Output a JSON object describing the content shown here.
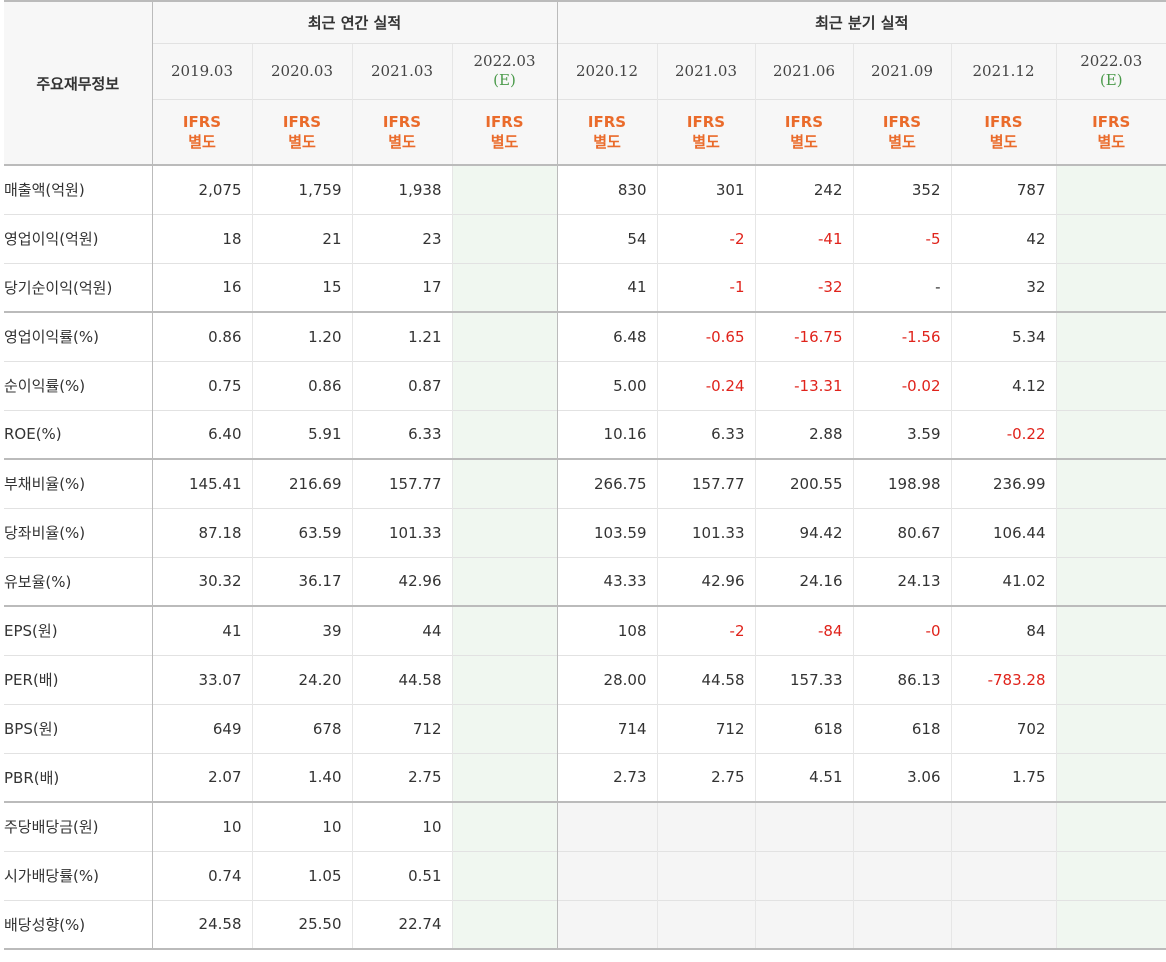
{
  "header": {
    "corner_label": "주요재무정보",
    "annual_group": "최근 연간 실적",
    "quarter_group": "최근 분기 실적",
    "annual_periods": [
      "2019.03",
      "2020.03",
      "2021.03",
      "2022.03"
    ],
    "annual_estimate_mark": "(E)",
    "quarter_periods": [
      "2020.12",
      "2021.03",
      "2021.06",
      "2021.09",
      "2021.12",
      "2022.03"
    ],
    "quarter_estimate_mark": "(E)",
    "ifrs_line1": "IFRS",
    "ifrs_line2": "별도"
  },
  "rows": [
    {
      "label": "매출액(억원)",
      "annual": [
        "2,075",
        "1,759",
        "1,938",
        ""
      ],
      "quarter": [
        "830",
        "301",
        "242",
        "352",
        "787",
        ""
      ]
    },
    {
      "label": "영업이익(억원)",
      "annual": [
        "18",
        "21",
        "23",
        ""
      ],
      "quarter": [
        "54",
        "-2",
        "-41",
        "-5",
        "42",
        ""
      ]
    },
    {
      "label": "당기순이익(억원)",
      "annual": [
        "16",
        "15",
        "17",
        ""
      ],
      "quarter": [
        "41",
        "-1",
        "-32",
        "-",
        "32",
        ""
      ]
    },
    {
      "label": "영업이익률(%)",
      "annual": [
        "0.86",
        "1.20",
        "1.21",
        ""
      ],
      "quarter": [
        "6.48",
        "-0.65",
        "-16.75",
        "-1.56",
        "5.34",
        ""
      ]
    },
    {
      "label": "순이익률(%)",
      "annual": [
        "0.75",
        "0.86",
        "0.87",
        ""
      ],
      "quarter": [
        "5.00",
        "-0.24",
        "-13.31",
        "-0.02",
        "4.12",
        ""
      ]
    },
    {
      "label": "ROE(%)",
      "annual": [
        "6.40",
        "5.91",
        "6.33",
        ""
      ],
      "quarter": [
        "10.16",
        "6.33",
        "2.88",
        "3.59",
        "-0.22",
        ""
      ]
    },
    {
      "label": "부채비율(%)",
      "annual": [
        "145.41",
        "216.69",
        "157.77",
        ""
      ],
      "quarter": [
        "266.75",
        "157.77",
        "200.55",
        "198.98",
        "236.99",
        ""
      ]
    },
    {
      "label": "당좌비율(%)",
      "annual": [
        "87.18",
        "63.59",
        "101.33",
        ""
      ],
      "quarter": [
        "103.59",
        "101.33",
        "94.42",
        "80.67",
        "106.44",
        ""
      ]
    },
    {
      "label": "유보율(%)",
      "annual": [
        "30.32",
        "36.17",
        "42.96",
        ""
      ],
      "quarter": [
        "43.33",
        "42.96",
        "24.16",
        "24.13",
        "41.02",
        ""
      ]
    },
    {
      "label": "EPS(원)",
      "annual": [
        "41",
        "39",
        "44",
        ""
      ],
      "quarter": [
        "108",
        "-2",
        "-84",
        "-0",
        "84",
        ""
      ]
    },
    {
      "label": "PER(배)",
      "annual": [
        "33.07",
        "24.20",
        "44.58",
        ""
      ],
      "quarter": [
        "28.00",
        "44.58",
        "157.33",
        "86.13",
        "-783.28",
        ""
      ]
    },
    {
      "label": "BPS(원)",
      "annual": [
        "649",
        "678",
        "712",
        ""
      ],
      "quarter": [
        "714",
        "712",
        "618",
        "618",
        "702",
        ""
      ]
    },
    {
      "label": "PBR(배)",
      "annual": [
        "2.07",
        "1.40",
        "2.75",
        ""
      ],
      "quarter": [
        "2.73",
        "2.75",
        "4.51",
        "3.06",
        "1.75",
        ""
      ]
    },
    {
      "label": "주당배당금(원)",
      "annual": [
        "10",
        "10",
        "10",
        ""
      ],
      "quarter": [
        "",
        "",
        "",
        "",
        "",
        ""
      ]
    },
    {
      "label": "시가배당률(%)",
      "annual": [
        "0.74",
        "1.05",
        "0.51",
        ""
      ],
      "quarter": [
        "",
        "",
        "",
        "",
        "",
        ""
      ]
    },
    {
      "label": "배당성향(%)",
      "annual": [
        "24.58",
        "25.50",
        "22.74",
        ""
      ],
      "quarter": [
        "",
        "",
        "",
        "",
        "",
        ""
      ]
    }
  ],
  "colors": {
    "negative": "#e0231b",
    "ifrs": "#ea6b2b",
    "estimate_mark": "#4a9a4a",
    "estimate_bg": "#f0f7f0",
    "empty_bg": "#f5f5f5"
  }
}
